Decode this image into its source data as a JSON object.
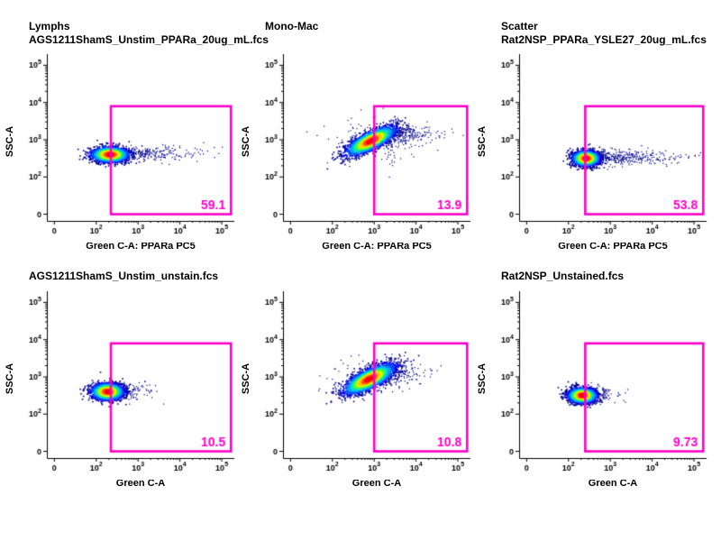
{
  "style": {
    "gate_color": "#ff00c8",
    "axis_color": "#000000",
    "sparse_color": "#00008b",
    "dot_palette": [
      "#00008b",
      "#0000e6",
      "#0050ff",
      "#00a8ff",
      "#00e0d0",
      "#40ff40",
      "#c8ff00",
      "#ffc800",
      "#ff5000",
      "#ff0000"
    ]
  },
  "axes": {
    "range": [
      0.82,
      5.3
    ],
    "ticks": [
      {
        "label": "0",
        "L": 1.0
      },
      {
        "base": "10",
        "exp": "2",
        "L": 2
      },
      {
        "base": "10",
        "exp": "3",
        "L": 3
      },
      {
        "base": "10",
        "exp": "4",
        "L": 4
      },
      {
        "base": "10",
        "exp": "5",
        "L": 5
      }
    ]
  },
  "chart_data": [
    {
      "type": "scatter",
      "title_lines": [
        "Lymphs",
        "AGS1211ShamS_Unstim_PPARa_20ug_mL.fcs"
      ],
      "xlabel": "Green C-A: PPARa PC5",
      "ylabel": "SSC-A",
      "gate": {
        "x0": 2.35,
        "x1": 5.22,
        "y0": 1.0,
        "y1": 3.9,
        "label": "59.1"
      },
      "seed": 11,
      "clusters": [
        {
          "n": 260,
          "cx": 2.55,
          "cy": 2.62,
          "sx": 0.85,
          "sy": 0.1,
          "rot": 0,
          "style": "sparse",
          "one_sided": true
        },
        {
          "n": 2400,
          "cx": 2.33,
          "cy": 2.6,
          "sx": 0.22,
          "sy": 0.1,
          "rot": 0,
          "style": "density"
        }
      ]
    },
    {
      "type": "scatter",
      "title_lines": [
        "Mono-Mac",
        ""
      ],
      "xlabel": "Green C-A: PPARa PC5",
      "ylabel": "SSC-A",
      "gate": {
        "x0": 3.0,
        "x1": 5.22,
        "y0": 1.0,
        "y1": 3.9,
        "label": "13.9"
      },
      "seed": 22,
      "clusters": [
        {
          "n": 160,
          "cx": 2.95,
          "cy": 3.0,
          "sx": 0.5,
          "sy": 0.3,
          "rot": 0,
          "style": "sparse"
        },
        {
          "n": 280,
          "cx": 3.3,
          "cy": 3.12,
          "sx": 0.55,
          "sy": 0.14,
          "rot": 0,
          "style": "sparse",
          "one_sided": true
        },
        {
          "n": 2600,
          "cx": 2.92,
          "cy": 2.97,
          "sx": 0.33,
          "sy": 0.11,
          "rot": 30,
          "style": "density"
        }
      ]
    },
    {
      "type": "scatter",
      "title_lines": [
        "Scatter",
        "Rat2NSP_PPARa_YSLE27_20ug_mL.fcs"
      ],
      "xlabel": "Green C-A: PPARa PC5",
      "ylabel": "SSC-A",
      "gate": {
        "x0": 2.4,
        "x1": 5.22,
        "y0": 1.0,
        "y1": 3.9,
        "label": "53.8"
      },
      "seed": 33,
      "clusters": [
        {
          "n": 380,
          "cx": 2.6,
          "cy": 2.52,
          "sx": 1.0,
          "sy": 0.1,
          "rot": 0,
          "style": "sparse",
          "one_sided": true
        },
        {
          "n": 2200,
          "cx": 2.42,
          "cy": 2.5,
          "sx": 0.16,
          "sy": 0.1,
          "rot": 0,
          "style": "density"
        }
      ]
    },
    {
      "type": "scatter",
      "title_lines": [
        "AGS1211ShamS_Unstim_unstain.fcs"
      ],
      "xlabel": "Green C-A",
      "ylabel": "SSC-A",
      "gate": {
        "x0": 2.35,
        "x1": 5.22,
        "y0": 1.0,
        "y1": 3.9,
        "label": "10.5"
      },
      "seed": 44,
      "clusters": [
        {
          "n": 140,
          "cx": 2.45,
          "cy": 2.62,
          "sx": 0.45,
          "sy": 0.11,
          "rot": 0,
          "style": "sparse",
          "one_sided": true
        },
        {
          "n": 2200,
          "cx": 2.27,
          "cy": 2.6,
          "sx": 0.19,
          "sy": 0.11,
          "rot": 0,
          "style": "density"
        }
      ]
    },
    {
      "type": "scatter",
      "title_lines": [
        ""
      ],
      "xlabel": "Green C-A",
      "ylabel": "SSC-A",
      "gate": {
        "x0": 3.0,
        "x1": 5.22,
        "y0": 1.0,
        "y1": 3.9,
        "label": "10.8"
      },
      "seed": 55,
      "clusters": [
        {
          "n": 130,
          "cx": 2.9,
          "cy": 2.98,
          "sx": 0.5,
          "sy": 0.28,
          "rot": 0,
          "style": "sparse"
        },
        {
          "n": 200,
          "cx": 3.25,
          "cy": 3.1,
          "sx": 0.45,
          "sy": 0.14,
          "rot": 0,
          "style": "sparse",
          "one_sided": true
        },
        {
          "n": 2600,
          "cx": 2.88,
          "cy": 2.94,
          "sx": 0.34,
          "sy": 0.12,
          "rot": 30,
          "style": "density"
        }
      ]
    },
    {
      "type": "scatter",
      "title_lines": [
        "Rat2NSP_Unstained.fcs"
      ],
      "xlabel": "Green C-A",
      "ylabel": "SSC-A",
      "gate": {
        "x0": 2.4,
        "x1": 5.22,
        "y0": 1.0,
        "y1": 3.9,
        "label": "9.73"
      },
      "seed": 66,
      "clusters": [
        {
          "n": 90,
          "cx": 2.5,
          "cy": 2.5,
          "sx": 0.35,
          "sy": 0.1,
          "rot": 0,
          "style": "sparse",
          "one_sided": true
        },
        {
          "n": 2200,
          "cx": 2.33,
          "cy": 2.5,
          "sx": 0.17,
          "sy": 0.1,
          "rot": 0,
          "style": "density"
        }
      ]
    }
  ]
}
